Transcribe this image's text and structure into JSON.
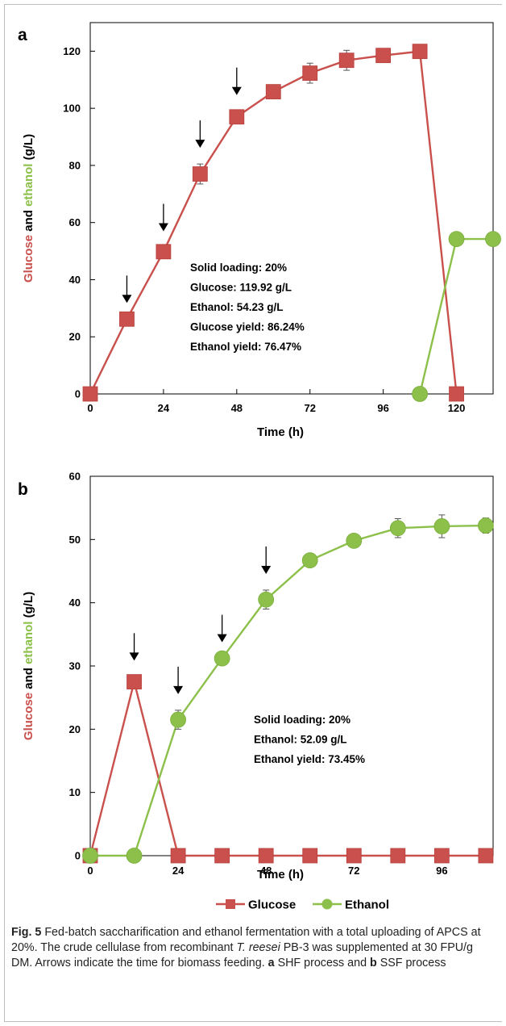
{
  "chart_data": [
    {
      "panel": "a",
      "type": "line",
      "xlabel": "Time (h)",
      "ylabel_parts": [
        {
          "text": "Glucose",
          "color": "#c9504c"
        },
        {
          "text": " and ",
          "color": "#000000"
        },
        {
          "text": "ethanol",
          "color": "#8cc04a"
        },
        {
          "text": " (g/L)",
          "color": "#000000"
        }
      ],
      "xlim": [
        0,
        132
      ],
      "ylim": [
        0,
        130
      ],
      "xticks": [
        0,
        24,
        48,
        72,
        96,
        120
      ],
      "yticks": [
        0,
        20,
        40,
        60,
        80,
        100,
        120
      ],
      "series": [
        {
          "name": "Glucose",
          "marker": "square",
          "color": "#c9504c",
          "x": [
            0,
            12,
            24,
            36,
            48,
            60,
            72,
            84,
            96,
            108,
            120
          ],
          "y": [
            0,
            26.2,
            49.8,
            77.0,
            97.0,
            105.8,
            112.3,
            116.8,
            118.5,
            119.92,
            0
          ],
          "err": [
            0,
            0,
            1.5,
            3.5,
            2.0,
            2.0,
            3.5,
            3.5,
            2.0,
            0,
            0
          ]
        },
        {
          "name": "Ethanol",
          "marker": "circle",
          "color": "#8cc04a",
          "x": [
            108,
            120,
            132
          ],
          "y": [
            0,
            54.23,
            54.23
          ],
          "err": [
            0,
            0,
            0
          ]
        }
      ],
      "feeding_arrows_x": [
        12,
        24,
        36,
        48
      ],
      "annotation": [
        "Solid loading: 20%",
        "Glucose: 119.92 g/L",
        "Ethanol: 54.23 g/L",
        "Glucose yield: 86.24%",
        "Ethanol yield: 76.47%"
      ]
    },
    {
      "panel": "b",
      "type": "line",
      "xlabel": "Time (h)",
      "ylabel_parts": [
        {
          "text": "Glucose",
          "color": "#c9504c"
        },
        {
          "text": " and ",
          "color": "#000000"
        },
        {
          "text": "ethanol",
          "color": "#8cc04a"
        },
        {
          "text": " (g/L)",
          "color": "#000000"
        }
      ],
      "xlim": [
        0,
        110
      ],
      "ylim": [
        0,
        60
      ],
      "xticks": [
        0,
        24,
        48,
        72,
        96
      ],
      "yticks": [
        0,
        10,
        20,
        30,
        40,
        50,
        60
      ],
      "series": [
        {
          "name": "Glucose",
          "marker": "square",
          "color": "#c9504c",
          "x": [
            0,
            12,
            24,
            36,
            48,
            60,
            72,
            84,
            96,
            108
          ],
          "y": [
            0,
            27.5,
            0,
            0,
            0,
            0,
            0,
            0,
            0,
            0
          ],
          "err": [
            0,
            0.8,
            0,
            0,
            0,
            0,
            0,
            0,
            0,
            0
          ]
        },
        {
          "name": "Ethanol",
          "marker": "circle",
          "color": "#8cc04a",
          "x": [
            0,
            12,
            24,
            36,
            48,
            60,
            72,
            84,
            96,
            108
          ],
          "y": [
            0,
            0,
            21.5,
            31.2,
            40.5,
            46.7,
            49.8,
            51.8,
            52.09,
            52.2
          ],
          "err": [
            0,
            0,
            1.5,
            0,
            1.5,
            0,
            1.0,
            1.5,
            1.8,
            1.2
          ]
        }
      ],
      "feeding_arrows_x": [
        12,
        24,
        36,
        48
      ],
      "annotation": [
        "Solid loading: 20%",
        "Ethanol: 52.09 g/L",
        "Ethanol yield: 73.45%"
      ]
    }
  ],
  "legend": [
    {
      "label": "Glucose",
      "marker": "square",
      "color": "#c9504c"
    },
    {
      "label": "Ethanol",
      "marker": "circle",
      "color": "#8cc04a"
    }
  ],
  "caption": {
    "fig_label": "Fig. 5",
    "text1": " Fed-batch saccharification and ethanol fermentation with a total uploading of APCS at 20%. The crude cellulase from recombinant ",
    "organism": "T. reesei",
    "text2": " PB-3 was supplemented at 30 FPU/g DM. Arrows indicate the time for biomass feeding. ",
    "panel_a": "a",
    "text3": " SHF process and ",
    "panel_b": "b",
    "text4": " SSF process"
  }
}
